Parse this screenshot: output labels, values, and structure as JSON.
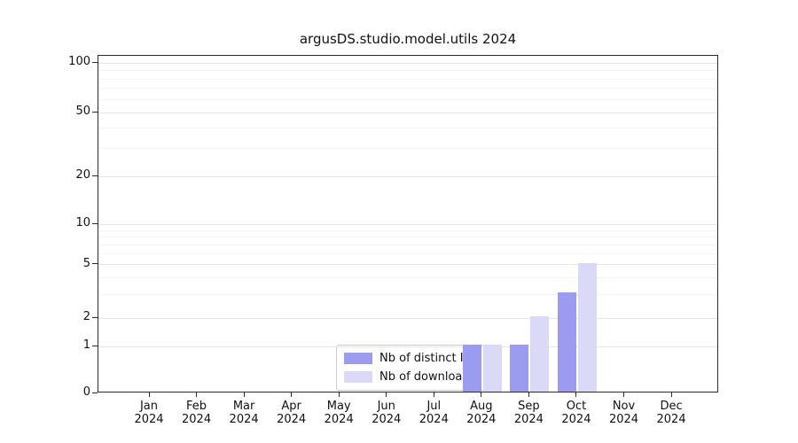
{
  "chart_data": {
    "type": "bar",
    "title": "argusDS.studio.model.utils 2024",
    "categories": [
      "Jan",
      "Feb",
      "Mar",
      "Apr",
      "May",
      "Jun",
      "Jul",
      "Aug",
      "Sep",
      "Oct",
      "Nov",
      "Dec"
    ],
    "year": "2024",
    "series": [
      {
        "name": "Nb of distinct IPs",
        "color": "#9b9bef",
        "values": [
          0,
          0,
          0,
          0,
          0,
          0,
          0,
          1,
          1,
          3,
          0,
          0
        ]
      },
      {
        "name": "Nb of downloads",
        "color": "#dadaf8",
        "values": [
          0,
          0,
          0,
          0,
          0,
          0,
          0,
          1,
          2,
          5,
          0,
          0
        ]
      }
    ],
    "yscale": "symlog",
    "y_ticks": [
      0,
      1,
      2,
      5,
      10,
      20,
      50,
      100
    ],
    "y_tick_labels": [
      "0",
      "1",
      "2",
      "5",
      "10",
      "20",
      "50",
      "100"
    ],
    "ylim": [
      0,
      100
    ],
    "grid": true,
    "legend_position": "lower-center-inside"
  }
}
